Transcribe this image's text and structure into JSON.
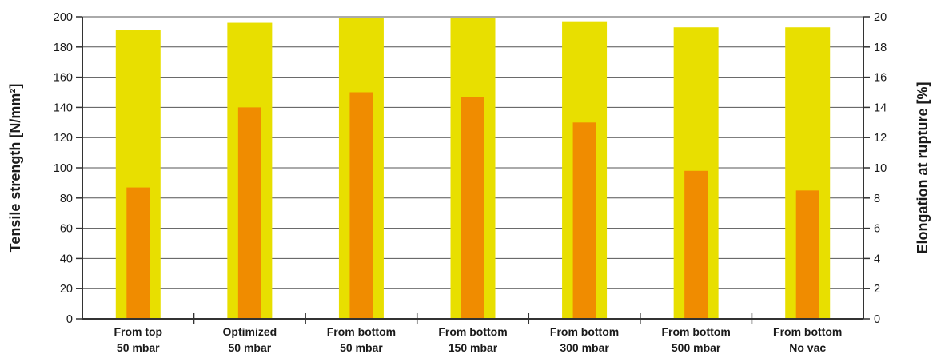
{
  "chart_data": {
    "type": "bar",
    "categories": [
      [
        "From top",
        "50 mbar"
      ],
      [
        "Optimized",
        "50 mbar"
      ],
      [
        "From bottom",
        "50 mbar"
      ],
      [
        "From bottom",
        "150 mbar"
      ],
      [
        "From bottom",
        "300 mbar"
      ],
      [
        "From bottom",
        "500 mbar"
      ],
      [
        "From bottom",
        "No vac"
      ]
    ],
    "series": [
      {
        "axis": "left",
        "values": [
          191,
          196,
          199,
          199,
          197,
          193,
          193
        ]
      },
      {
        "axis": "right",
        "values": [
          8.7,
          14.0,
          15.0,
          14.7,
          13.0,
          9.8,
          8.5
        ]
      }
    ],
    "ylabel": "Tensile strength [N/mm²]",
    "y2label": "Elongation at rupture [%]",
    "ylim": [
      0,
      200
    ],
    "y2lim": [
      0,
      20
    ],
    "yticks": [
      "0",
      "20",
      "40",
      "60",
      "80",
      "100",
      "120",
      "140",
      "160",
      "180",
      "200"
    ],
    "y2ticks": [
      "0",
      "2",
      "4",
      "6",
      "8",
      "10",
      "12",
      "14",
      "16",
      "18",
      "20"
    ],
    "grid": true,
    "colors": {
      "left_series": "#e8df00",
      "right_series": "#f08c00",
      "axis": "#333333",
      "grid": "#555555"
    }
  }
}
